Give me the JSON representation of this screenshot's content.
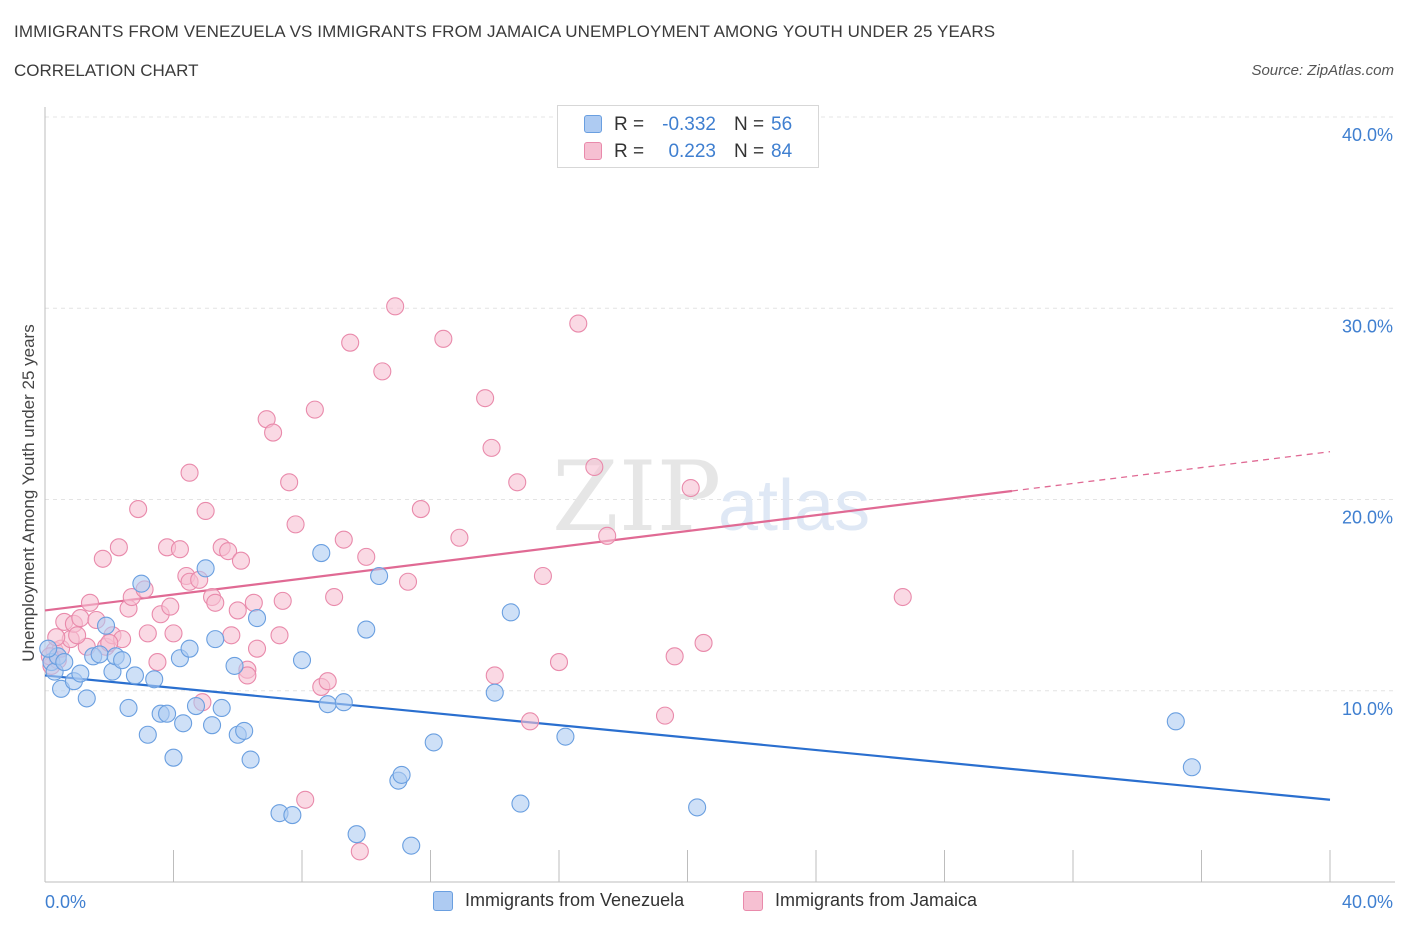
{
  "header": {
    "title": "IMMIGRANTS FROM VENEZUELA VS IMMIGRANTS FROM JAMAICA UNEMPLOYMENT AMONG YOUTH UNDER 25 YEARS",
    "subtitle": "CORRELATION CHART",
    "source": "Source: ZipAtlas.com"
  },
  "legend": {
    "r_label": "R =",
    "n_label": "N =",
    "series": [
      {
        "name": "Immigrants from Venezuela",
        "r": "-0.332",
        "n": "56"
      },
      {
        "name": "Immigrants from Jamaica",
        "r": "0.223",
        "n": "84"
      }
    ]
  },
  "watermark": {
    "zip": "ZIP",
    "atlas": "atlas"
  },
  "chart_data": {
    "type": "scatter",
    "title": "IMMIGRANTS FROM VENEZUELA VS IMMIGRANTS FROM JAMAICA UNEMPLOYMENT AMONG YOUTH UNDER 25 YEARS",
    "subtitle": "CORRELATION CHART",
    "xlabel": "",
    "ylabel": "Unemployment Among Youth under 25 years",
    "xlim": [
      0,
      40
    ],
    "ylim": [
      0,
      40
    ],
    "x_tick_labels": [
      "0.0%",
      "40.0%"
    ],
    "y_tick_labels": [
      "10.0%",
      "20.0%",
      "30.0%",
      "40.0%"
    ],
    "y_ticks": [
      10,
      20,
      30,
      40
    ],
    "grid": true,
    "colors": {
      "venezuela_fill": "#aecbf2",
      "venezuela_stroke": "#6a9fe0",
      "venezuela_line": "#2a6fcf",
      "jamaica_fill": "#f6c0d2",
      "jamaica_stroke": "#e98aab",
      "jamaica_line": "#e06a94",
      "tick_label": "#3f7fd0"
    },
    "series": [
      {
        "name": "Immigrants from Venezuela",
        "r": -0.332,
        "n": 56,
        "trend": {
          "x0": 0,
          "y0": 10.8,
          "x1": 40,
          "y1": 4.3,
          "solid_to": 40
        },
        "points": [
          [
            0.2,
            11.5
          ],
          [
            0.3,
            11.0
          ],
          [
            0.4,
            11.8
          ],
          [
            0.5,
            10.1
          ],
          [
            0.6,
            11.5
          ],
          [
            0.9,
            10.5
          ],
          [
            1.1,
            10.9
          ],
          [
            1.3,
            9.6
          ],
          [
            1.5,
            11.8
          ],
          [
            1.7,
            11.9
          ],
          [
            1.9,
            13.4
          ],
          [
            2.1,
            11.0
          ],
          [
            2.2,
            11.8
          ],
          [
            2.4,
            11.6
          ],
          [
            2.6,
            9.1
          ],
          [
            2.8,
            10.8
          ],
          [
            3.0,
            15.6
          ],
          [
            3.2,
            7.7
          ],
          [
            3.4,
            10.6
          ],
          [
            3.6,
            8.8
          ],
          [
            3.8,
            8.8
          ],
          [
            4.0,
            6.5
          ],
          [
            4.2,
            11.7
          ],
          [
            4.3,
            8.3
          ],
          [
            4.5,
            12.2
          ],
          [
            4.7,
            9.2
          ],
          [
            5.0,
            16.4
          ],
          [
            5.2,
            8.2
          ],
          [
            5.3,
            12.7
          ],
          [
            5.5,
            9.1
          ],
          [
            5.9,
            11.3
          ],
          [
            6.0,
            7.7
          ],
          [
            6.2,
            7.9
          ],
          [
            6.4,
            6.4
          ],
          [
            6.6,
            13.8
          ],
          [
            7.3,
            3.6
          ],
          [
            7.7,
            3.5
          ],
          [
            8.0,
            11.6
          ],
          [
            8.6,
            17.2
          ],
          [
            8.8,
            9.3
          ],
          [
            9.3,
            9.4
          ],
          [
            9.7,
            2.5
          ],
          [
            10.0,
            13.2
          ],
          [
            10.4,
            16.0
          ],
          [
            11.0,
            5.3
          ],
          [
            11.1,
            5.6
          ],
          [
            11.4,
            1.9
          ],
          [
            12.1,
            7.3
          ],
          [
            14.0,
            9.9
          ],
          [
            14.5,
            14.1
          ],
          [
            14.8,
            4.1
          ],
          [
            16.2,
            7.6
          ],
          [
            20.3,
            3.9
          ],
          [
            35.2,
            8.4
          ],
          [
            35.7,
            6.0
          ],
          [
            0.1,
            12.2
          ]
        ]
      },
      {
        "name": "Immigrants from Jamaica",
        "r": 0.223,
        "n": 84,
        "trend": {
          "x0": 0,
          "y0": 14.2,
          "x1": 40,
          "y1": 22.5,
          "solid_to": 30.1
        },
        "points": [
          [
            0.2,
            11.3
          ],
          [
            0.3,
            12.1
          ],
          [
            0.4,
            11.6
          ],
          [
            0.5,
            12.2
          ],
          [
            0.6,
            13.6
          ],
          [
            0.8,
            12.7
          ],
          [
            0.9,
            13.5
          ],
          [
            1.1,
            13.8
          ],
          [
            1.3,
            12.3
          ],
          [
            1.4,
            14.6
          ],
          [
            1.6,
            13.7
          ],
          [
            1.8,
            16.9
          ],
          [
            1.9,
            12.3
          ],
          [
            2.1,
            12.9
          ],
          [
            2.3,
            17.5
          ],
          [
            2.4,
            12.7
          ],
          [
            2.6,
            14.3
          ],
          [
            2.7,
            14.9
          ],
          [
            2.9,
            19.5
          ],
          [
            3.1,
            15.3
          ],
          [
            3.2,
            13.0
          ],
          [
            3.5,
            11.5
          ],
          [
            3.6,
            14.0
          ],
          [
            3.8,
            17.5
          ],
          [
            3.9,
            14.4
          ],
          [
            4.0,
            13.0
          ],
          [
            4.2,
            17.4
          ],
          [
            4.4,
            16.0
          ],
          [
            4.5,
            15.7
          ],
          [
            4.5,
            21.4
          ],
          [
            4.8,
            15.8
          ],
          [
            4.9,
            9.4
          ],
          [
            5.0,
            19.4
          ],
          [
            5.2,
            14.9
          ],
          [
            5.3,
            14.6
          ],
          [
            5.5,
            17.5
          ],
          [
            5.7,
            17.3
          ],
          [
            5.8,
            12.9
          ],
          [
            6.0,
            14.2
          ],
          [
            6.1,
            16.8
          ],
          [
            6.3,
            11.1
          ],
          [
            6.3,
            10.8
          ],
          [
            6.5,
            14.6
          ],
          [
            6.6,
            12.2
          ],
          [
            6.9,
            24.2
          ],
          [
            7.1,
            23.5
          ],
          [
            7.3,
            12.9
          ],
          [
            7.4,
            14.7
          ],
          [
            7.6,
            20.9
          ],
          [
            7.8,
            18.7
          ],
          [
            8.1,
            4.3
          ],
          [
            8.4,
            24.7
          ],
          [
            8.6,
            10.2
          ],
          [
            8.8,
            10.5
          ],
          [
            9.0,
            14.9
          ],
          [
            9.3,
            17.9
          ],
          [
            9.5,
            28.2
          ],
          [
            9.8,
            1.6
          ],
          [
            10.0,
            17.0
          ],
          [
            10.5,
            26.7
          ],
          [
            10.9,
            30.1
          ],
          [
            11.3,
            15.7
          ],
          [
            11.7,
            19.5
          ],
          [
            12.4,
            28.4
          ],
          [
            12.9,
            18.0
          ],
          [
            13.7,
            25.3
          ],
          [
            13.9,
            22.7
          ],
          [
            14.0,
            10.8
          ],
          [
            14.7,
            20.9
          ],
          [
            15.1,
            8.4
          ],
          [
            15.5,
            16.0
          ],
          [
            16.0,
            11.5
          ],
          [
            16.6,
            29.2
          ],
          [
            17.1,
            21.7
          ],
          [
            17.5,
            18.1
          ],
          [
            19.3,
            8.7
          ],
          [
            19.6,
            11.8
          ],
          [
            20.1,
            20.6
          ],
          [
            20.5,
            12.5
          ],
          [
            26.7,
            14.9
          ],
          [
            0.15,
            11.8
          ],
          [
            0.35,
            12.8
          ],
          [
            1.0,
            12.9
          ],
          [
            2.0,
            12.5
          ]
        ]
      }
    ]
  }
}
